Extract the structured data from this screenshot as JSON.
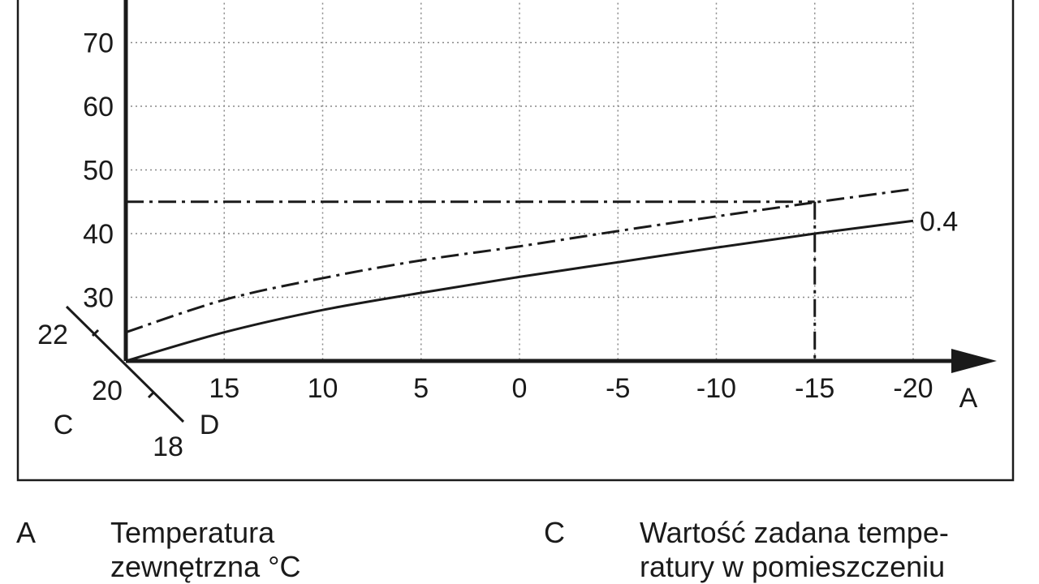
{
  "chart_data": {
    "type": "line",
    "x_axis": {
      "letter": "A",
      "ticks": [
        20,
        15,
        10,
        5,
        0,
        -5,
        -10,
        -15,
        -20
      ],
      "reversed": true,
      "range": [
        20,
        -20
      ]
    },
    "y_axis": {
      "ticks": [
        30,
        40,
        50,
        60,
        70
      ],
      "range": [
        20,
        77
      ]
    },
    "grid": "dotted",
    "room_setpoint_axis": {
      "letters": [
        "C",
        "D"
      ],
      "ticks": [
        "22",
        "20",
        "18"
      ]
    },
    "series": [
      {
        "name": "0.4",
        "style": "solid",
        "x": [
          20,
          15,
          10,
          5,
          0,
          -5,
          -10,
          -15,
          -20
        ],
        "y": [
          20,
          24.5,
          28,
          30.7,
          33.2,
          35.5,
          37.8,
          40,
          42
        ]
      },
      {
        "style": "dash-dot",
        "x": [
          20,
          15,
          10,
          5,
          0,
          -5,
          -10,
          -15,
          -20
        ],
        "y": [
          24.5,
          29.6,
          33,
          35.8,
          38,
          40.4,
          42.7,
          44.9,
          47
        ]
      }
    ],
    "reference_lines": {
      "horizontal_y": 45,
      "vertical_x": -15,
      "style": "dash-dot"
    }
  },
  "legend": [
    {
      "letter": "A",
      "text_lines": [
        "Temperatura",
        "zewnętrzna °C"
      ]
    },
    {
      "letter": "C",
      "text_lines": [
        "Wartość zadana tempe-",
        "ratury w pomieszczeniu"
      ]
    }
  ],
  "colors": {
    "ink": "#1a1a1a",
    "grid": "#888888",
    "background": "#ffffff"
  }
}
